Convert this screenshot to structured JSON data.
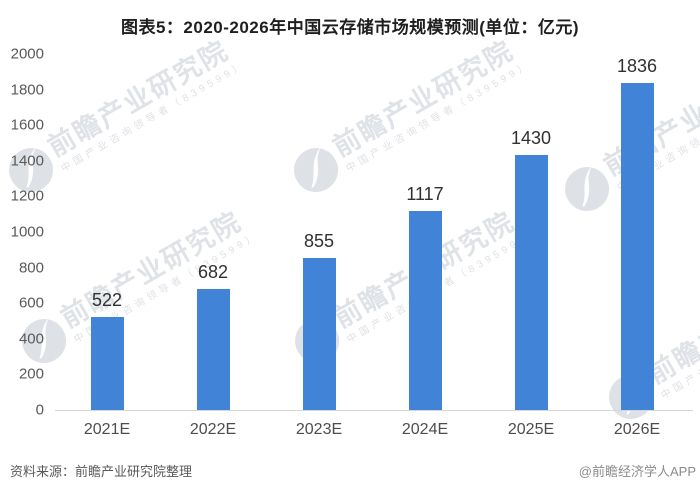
{
  "title": "图表5：2020-2026年中国云存储市场规模预测(单位：亿元)",
  "chart_data": {
    "type": "bar",
    "title": "图表5：2020-2026年中国云存储市场规模预测(单位：亿元)",
    "categories": [
      "2021E",
      "2022E",
      "2023E",
      "2024E",
      "2025E",
      "2026E"
    ],
    "values": [
      522,
      682,
      855,
      1117,
      1430,
      1836
    ],
    "data_labels": [
      "522",
      "682",
      "855",
      "1117",
      "1430",
      "1836"
    ],
    "xlabel": "",
    "ylabel": "",
    "unit": "亿元",
    "ylim": [
      0,
      2000
    ],
    "y_ticks": [
      0,
      200,
      400,
      600,
      800,
      1000,
      1200,
      1400,
      1600,
      1800,
      2000
    ],
    "grid": false,
    "legend": false,
    "bar_color": "#4183d7"
  },
  "watermark": {
    "logo_icon": "qianzhan-swoosh-logo",
    "big_text": "前瞻产业研究院",
    "small_text": "中国产业咨询领导者（839599）"
  },
  "footer": {
    "source": "资料来源：前瞻产业研究院整理",
    "credit": "@前瞻经济学人APP"
  },
  "colors": {
    "bar": "#4183d7",
    "title_text": "#1f1f1f",
    "axis_label": "#595959",
    "category_label": "#4d4d4d",
    "data_label": "#303030",
    "baseline": "#d6d6d6",
    "watermark": "#94a1ae",
    "background": "#ffffff"
  }
}
